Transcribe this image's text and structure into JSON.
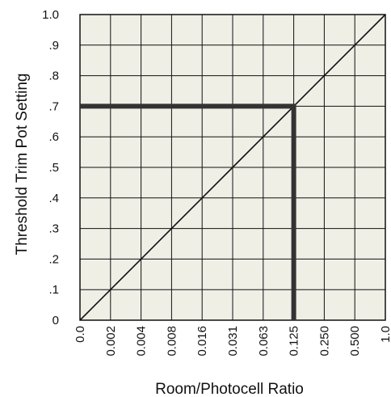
{
  "chart_data": {
    "type": "line",
    "xlabel": "Room/Photocell Ratio",
    "ylabel": "Threshold Trim Pot Setting",
    "x_tick_labels": [
      "0.0",
      "0.002",
      "0.004",
      "0.008",
      "0.016",
      "0.031",
      "0.063",
      "0.125",
      "0.250",
      "0.500",
      "1.0"
    ],
    "y_tick_labels": [
      "0",
      ".1",
      ".2",
      ".3",
      ".4",
      ".5",
      ".6",
      ".7",
      ".8",
      ".9",
      "1.0"
    ],
    "y_tick_values": [
      0,
      0.1,
      0.2,
      0.3,
      0.4,
      0.5,
      0.6,
      0.7,
      0.8,
      0.9,
      1.0
    ],
    "ylim": [
      0,
      1.0
    ],
    "grid": true,
    "background_color": "#efefe6",
    "grid_color": "#111111",
    "series": [
      {
        "x": [
          "0.0",
          "0.002",
          "0.004",
          "0.008",
          "0.016",
          "0.031",
          "0.063",
          "0.125",
          "0.250",
          "0.500",
          "1.0"
        ],
        "y": [
          0,
          0.1,
          0.2,
          0.3,
          0.4,
          0.5,
          0.6,
          0.7,
          0.8,
          0.9,
          1.0
        ],
        "color": "#111111"
      }
    ],
    "annotation": {
      "x": "0.125",
      "y": 0.7,
      "color": "#333333"
    }
  }
}
